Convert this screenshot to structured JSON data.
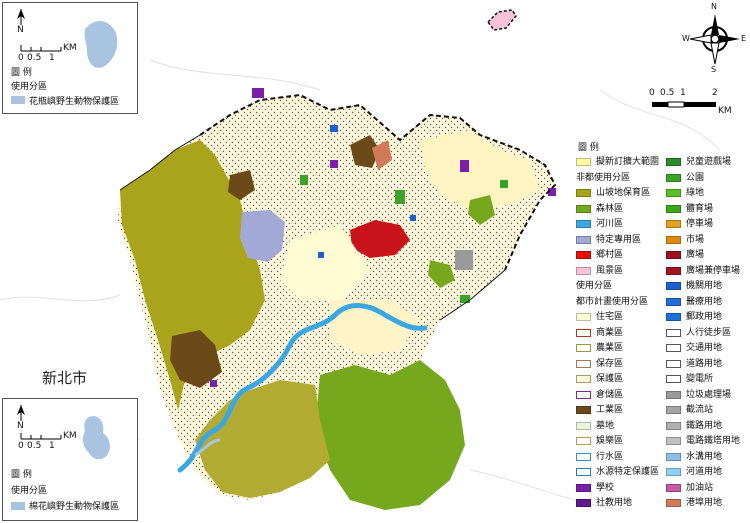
{
  "city_label": "新北市",
  "top_inset": {
    "north": "N",
    "scale_ticks": [
      "0",
      "0.5",
      "1"
    ],
    "scale_unit": "KM",
    "legend_title": "圖 例",
    "legend_subtitle": "使用分區",
    "legend_item": "花瓶嶼野生動物保護區",
    "item_color": "#a8c4e0"
  },
  "bottom_inset": {
    "north": "N",
    "scale_ticks": [
      "0",
      "0.5",
      "1"
    ],
    "scale_unit": "KM",
    "legend_title": "圖 例",
    "legend_subtitle": "使用分區",
    "legend_item": "棉花嶼野生動物保護區",
    "item_color": "#a8c4e0"
  },
  "compass": {
    "n": "N",
    "s": "S",
    "e": "E",
    "w": "W"
  },
  "main_scale": {
    "ticks": [
      "0",
      "0.5",
      "1",
      "2"
    ],
    "unit": "KM"
  },
  "legend": {
    "title": "圖 例",
    "left_column": [
      {
        "label": "擬新訂擴大範圍",
        "color": "#fff9a6"
      },
      {
        "header": "非都使用分區"
      },
      {
        "label": "山坡地保育區",
        "color": "#a9a41c"
      },
      {
        "label": "森林區",
        "color": "#76a81d"
      },
      {
        "label": "河川區",
        "color": "#3ba7e2"
      },
      {
        "label": "特定專用區",
        "color": "#a3a9d6"
      },
      {
        "label": "鄉村區",
        "color": "#e3120b"
      },
      {
        "label": "風景區",
        "color": "#f7c3d9"
      },
      {
        "header": "使用分區"
      },
      {
        "header": "都市計畫使用分區"
      },
      {
        "label": "住宅區",
        "color": "#fffbd2"
      },
      {
        "label": "商業區",
        "color": "#ffffff",
        "border": "#b2342a"
      },
      {
        "label": "農業區",
        "color": "#ffffff",
        "border": "#9a9a3a"
      },
      {
        "label": "保存區",
        "color": "#ffffff",
        "border": "#a07a50"
      },
      {
        "label": "保護區",
        "color": "#fff7d8",
        "border": "#a79a6a"
      },
      {
        "label": "倉儲區",
        "color": "#ffffff",
        "border": "#7b2b8a"
      },
      {
        "label": "工業區",
        "color": "#6b4a1a"
      },
      {
        "label": "墓地",
        "color": "#e9f6dd"
      },
      {
        "label": "娛樂區",
        "color": "#ffffff",
        "border": "#b7a23f"
      },
      {
        "label": "行水區",
        "color": "#ffffff",
        "border": "#3a8ad2"
      },
      {
        "label": "水源特定保護區",
        "color": "#ffffff",
        "border": "#2a7fbf"
      },
      {
        "label": "學校",
        "color": "#7a1fa8"
      },
      {
        "label": "社教用地",
        "color": "#5c1a8e"
      }
    ],
    "right_column": [
      {
        "label": "兒童遊戲場",
        "color": "#2d8a2d"
      },
      {
        "label": "公園",
        "color": "#3aa32a"
      },
      {
        "label": "綠地",
        "color": "#5bbf2a"
      },
      {
        "label": "體育場",
        "color": "#3aa81a"
      },
      {
        "label": "停車場",
        "color": "#e0a020"
      },
      {
        "label": "市場",
        "color": "#e08a10"
      },
      {
        "label": "廣場",
        "color": "#9b111e"
      },
      {
        "label": "廣場兼停車場",
        "color": "#a0151e"
      },
      {
        "label": "機關用地",
        "color": "#1c5fd0"
      },
      {
        "label": "醫療用地",
        "color": "#1f6ed6"
      },
      {
        "label": "郵政用地",
        "color": "#2070d8"
      },
      {
        "label": "人行徒步區",
        "color": "#ffffff",
        "border": "#555555"
      },
      {
        "label": "交通用地",
        "color": "#ffffff",
        "border": "#555555"
      },
      {
        "label": "道路用地",
        "color": "#ffffff",
        "border": "#555555"
      },
      {
        "label": "變電所",
        "color": "#ffffff",
        "border": "#555555"
      },
      {
        "label": "垃圾處理場",
        "color": "#9a9a9a"
      },
      {
        "label": "截流站",
        "color": "#a5a5a5"
      },
      {
        "label": "鐵路用地",
        "color": "#b0b0b0"
      },
      {
        "label": "電路鐵塔用地",
        "color": "#c0c0c0"
      },
      {
        "label": "水溝用地",
        "color": "#8bbfe6"
      },
      {
        "label": "河道用地",
        "color": "#8fd0f2"
      },
      {
        "label": "加油站",
        "color": "#c45aa0"
      },
      {
        "label": "港埠用地",
        "color": "#d07a58"
      }
    ]
  }
}
